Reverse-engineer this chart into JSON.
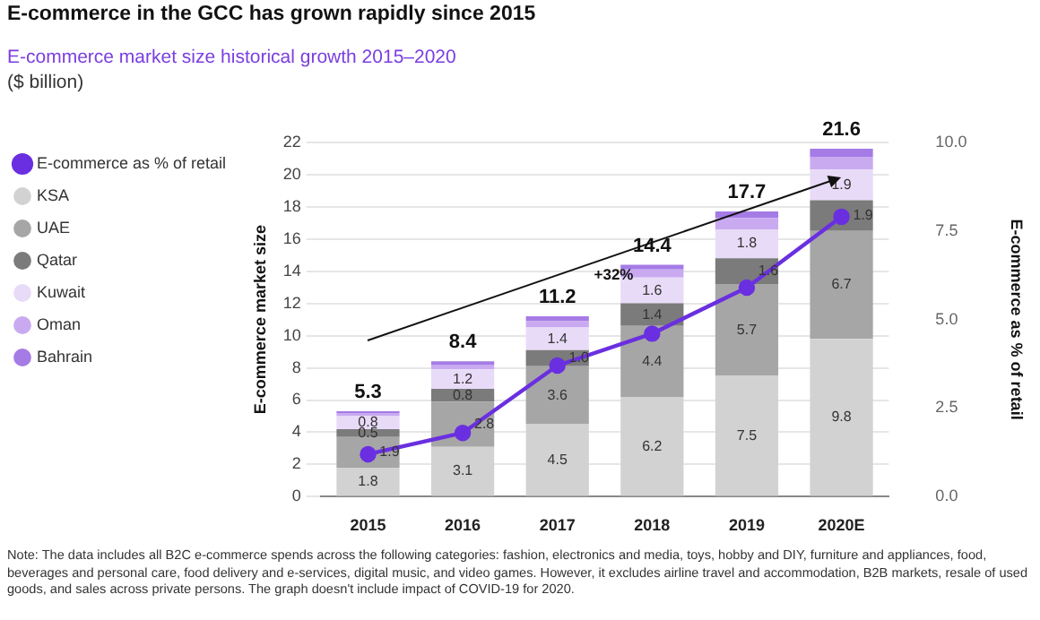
{
  "chart_data": {
    "type": "bar",
    "title": "E-commerce in the GCC has grown rapidly since 2015",
    "subtitle": "E-commerce market size historical growth 2015–2020",
    "ylabel": "E-commerce market size",
    "y2label": "E-commerce as % of retail",
    "categories": [
      "2015",
      "2016",
      "2017",
      "2018",
      "2019",
      "2020E"
    ],
    "stacked": true,
    "series": [
      {
        "name": "E-commerce as % of retail",
        "type": "line",
        "axis": "y2",
        "color": "#6a2fe0",
        "values": [
          1.2,
          1.8,
          3.7,
          4.6,
          5.9,
          7.9
        ]
      },
      {
        "name": "KSA",
        "color": "#d2d2d2",
        "values": [
          1.8,
          3.1,
          4.5,
          6.2,
          7.5,
          9.8
        ],
        "value_labels": [
          "1.8",
          "3.1",
          "4.5",
          "6.2",
          "7.5",
          "9.8"
        ]
      },
      {
        "name": "UAE",
        "color": "#a6a6a6",
        "values": [
          1.9,
          2.8,
          3.6,
          4.4,
          5.7,
          6.7
        ],
        "value_labels": [
          "1.9",
          "2.8",
          "3.6",
          "4.4",
          "5.7",
          "6.7"
        ]
      },
      {
        "name": "Qatar",
        "color": "#7b7b7b",
        "values": [
          0.5,
          0.8,
          1.0,
          1.4,
          1.6,
          1.9
        ],
        "value_labels": [
          "0.5",
          "0.8",
          "1.0",
          "1.4",
          "1.6",
          "1.9"
        ]
      },
      {
        "name": "Kuwait",
        "color": "#e8dbf8",
        "values": [
          0.8,
          1.2,
          1.4,
          1.6,
          1.8,
          1.9
        ],
        "value_labels": [
          "0.8",
          "1.2",
          "1.4",
          "1.6",
          "1.8",
          "1.9"
        ]
      },
      {
        "name": "Oman",
        "color": "#c9aaf0",
        "values": [
          0.2,
          0.3,
          0.4,
          0.5,
          0.7,
          0.8
        ]
      },
      {
        "name": "Bahrain",
        "color": "#a57be6",
        "values": [
          0.1,
          0.2,
          0.3,
          0.3,
          0.4,
          0.5
        ]
      }
    ],
    "totals": [
      "5.3",
      "8.4",
      "11.2",
      "14.4",
      "17.7",
      "21.6"
    ],
    "ylim": [
      0,
      22
    ],
    "yticks": [
      0,
      2,
      4,
      6,
      8,
      10,
      12,
      14,
      16,
      18,
      20,
      22
    ],
    "y2lim": [
      0,
      10
    ],
    "y2ticks": [
      {
        "value": 0,
        "label": "0.0"
      },
      {
        "value": 2.5,
        "label": "2.5"
      },
      {
        "value": 5,
        "label": "5.0"
      },
      {
        "value": 7.5,
        "label": "7.5"
      },
      {
        "value": 10,
        "label": "10.0"
      }
    ],
    "grid": "y",
    "legend": "left",
    "marker": "circle",
    "annotations": [
      "($ billion)",
      "+32%",
      "Note: The data includes all B2C e-commerce spends across the following categories: fashion, electronics and media, toys, hobby and DIY, furniture and appliances, food, beverages and personal care, food delivery and e-services, digital music, and video games. However, it excludes airline travel and accommodation, B2B markets, resale of used goods, and sales across private persons. The graph doesn't include impact of COVID-19 for 2020."
    ]
  }
}
